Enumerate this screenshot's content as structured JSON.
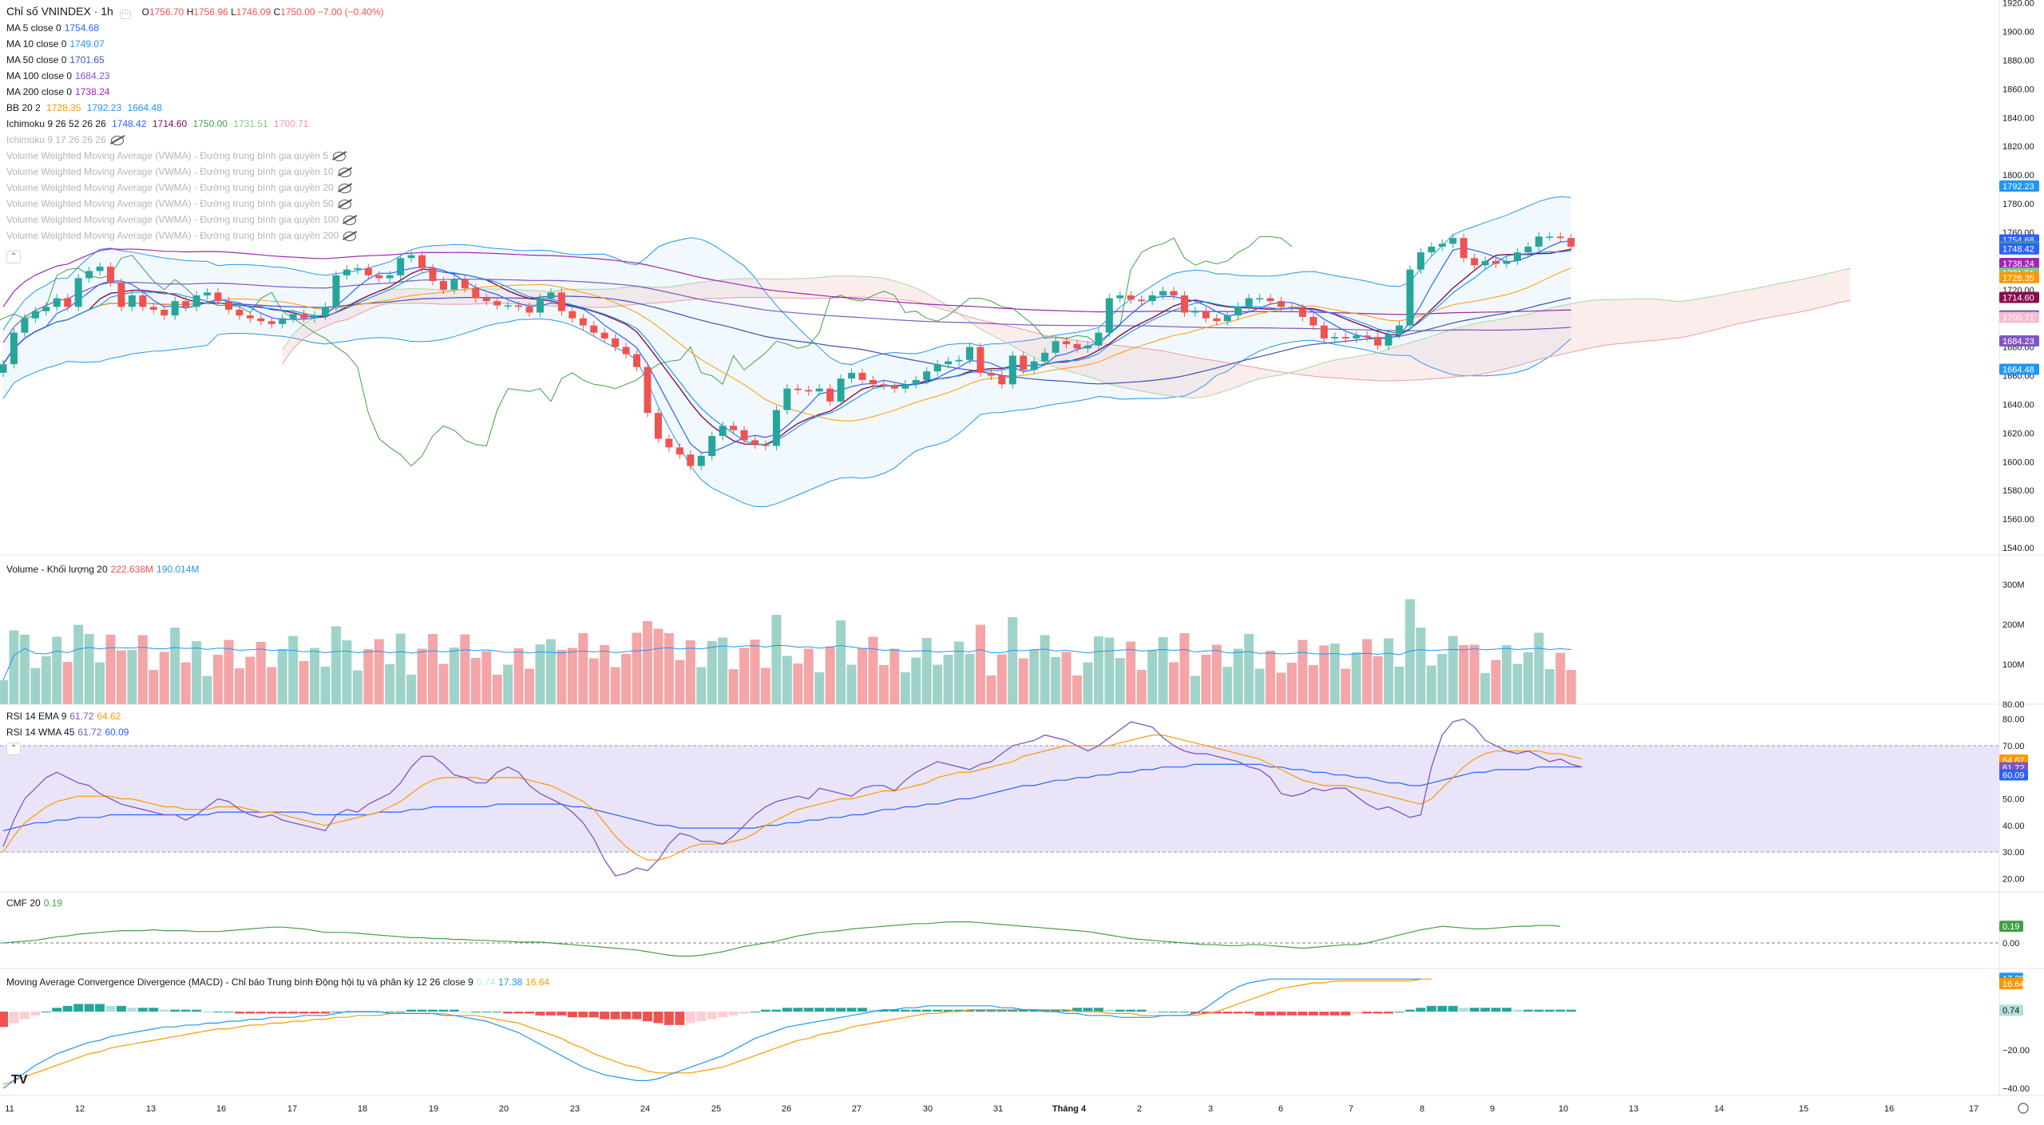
{
  "legend": {
    "title": "Chỉ số VNINDEX · 1h",
    "ohlc": {
      "o_label": "O",
      "o": "1756.70",
      "h_label": "H",
      "h": "1756.96",
      "l_label": "L",
      "l": "1746.09",
      "c_label": "C",
      "c": "1750.00",
      "chg": "−7.00 (−0.40%)"
    },
    "ma": [
      {
        "label": "MA 5 close 0",
        "value": "1754.68",
        "color": "#2962ff"
      },
      {
        "label": "MA 10 close 0",
        "value": "1749.07",
        "color": "#2196f3"
      },
      {
        "label": "MA 50 close 0",
        "value": "1701.65",
        "color": "#3f51b5"
      },
      {
        "label": "MA 100 close 0",
        "value": "1684.23",
        "color": "#7e57c2"
      },
      {
        "label": "MA 200 close 0",
        "value": "1738.24",
        "color": "#9c27b0"
      }
    ],
    "bb": {
      "label": "BB 20 2",
      "v1": "1728.35",
      "v2": "1792.23",
      "v3": "1664.48"
    },
    "ichimoku": {
      "label": "Ichimoku 9 26 52 26 26",
      "v1": "1748.42",
      "v2": "1714.60",
      "v3": "1750.00",
      "v4": "1731.51",
      "v5": "1700.71"
    },
    "ichimoku2": "Ichimoku 9 17 26 26 26",
    "vwma": [
      "Volume Weighted Moving Average (VWMA) - Đường trung bình gia quyền 5",
      "Volume Weighted Moving Average (VWMA) - Đường trung bình gia quyền 10",
      "Volume Weighted Moving Average (VWMA) - Đường trung bình gia quyền 20",
      "Volume Weighted Moving Average (VWMA) - Đường trung bình gia quyền 50",
      "Volume Weighted Moving Average (VWMA) - Đường trung bình gia quyền 100",
      "Volume Weighted Moving Average (VWMA) - Đường trung bình gia quyền 200"
    ],
    "volume": {
      "label": "Volume - Khối lượng 20",
      "v1": "222.638M",
      "v2": "190.014M"
    },
    "rsi1": {
      "label": "RSI 14 EMA 9",
      "v1": "61.72",
      "v2": "64.62"
    },
    "rsi2": {
      "label": "RSI 14 WMA 45",
      "v1": "61.72",
      "v2": "60.09"
    },
    "cmf": {
      "label": "CMF 20",
      "v1": "0.19"
    },
    "macd": {
      "label": "Moving Average Convergence Divergence (MACD) - Chỉ báo Trung bình Động hội tụ và phân kỳ 12 26 close 9",
      "v1": "0.74",
      "v2": "17.38",
      "v3": "16.64"
    }
  },
  "logo_text": "TV",
  "colors": {
    "up": "#26a69a",
    "down": "#ef5350",
    "up_vol": "#9fd3c9",
    "down_vol": "#f3a5a8",
    "rsi_bg": "#e9e4f7"
  },
  "chart_data": {
    "type": "candlestick",
    "x_labels": [
      "11",
      "12",
      "13",
      "16",
      "17",
      "18",
      "19",
      "20",
      "23",
      "24",
      "25",
      "26",
      "27",
      "30",
      "31",
      "Tháng 4",
      "2",
      "3",
      "6",
      "7",
      "8",
      "9",
      "10",
      "13",
      "14",
      "15",
      "16",
      "17"
    ],
    "price_axis": {
      "ticks": [
        1540,
        1560,
        1580,
        1600,
        1620,
        1640,
        1660,
        1680,
        1700,
        1720,
        1740,
        1760,
        1780,
        1800,
        1820,
        1840,
        1860,
        1880,
        1900,
        1920
      ],
      "ylim": [
        1535,
        1922
      ]
    },
    "price_tags": [
      {
        "value": "1792.23",
        "color": "#2196f3"
      },
      {
        "value": "1754.68",
        "color": "#2962ff"
      },
      {
        "value": "1750.00",
        "color": "#ef5350"
      },
      {
        "value": "1750.00",
        "color": "#43a047"
      },
      {
        "value": "1749.07",
        "color": "#2196f3"
      },
      {
        "value": "1748.42",
        "color": "#2962ff"
      },
      {
        "value": "1738.24",
        "color": "#9c27b0"
      },
      {
        "value": "1731.51",
        "color": "#81c784"
      },
      {
        "value": "1728.35",
        "color": "#ff9800"
      },
      {
        "value": "1714.60",
        "color": "#880e4f"
      },
      {
        "value": "1701.65",
        "color": "#3f51b5"
      },
      {
        "value": "1700.71",
        "color": "#f8bbd0"
      },
      {
        "value": "1684.23",
        "color": "#7e57c2"
      },
      {
        "value": "1664.48",
        "color": "#2196f3"
      }
    ],
    "close": [
      1668,
      1690,
      1700,
      1705,
      1708,
      1714,
      1708,
      1728,
      1733,
      1736,
      1725,
      1708,
      1716,
      1708,
      1706,
      1702,
      1712,
      1708,
      1716,
      1718,
      1712,
      1706,
      1702,
      1700,
      1698,
      1696,
      1700,
      1703,
      1700,
      1702,
      1708,
      1730,
      1734,
      1735,
      1730,
      1728,
      1730,
      1742,
      1744,
      1735,
      1726,
      1720,
      1727,
      1721,
      1714,
      1712,
      1709,
      1709,
      1708,
      1704,
      1714,
      1718,
      1705,
      1700,
      1695,
      1690,
      1686,
      1680,
      1675,
      1666,
      1634,
      1616,
      1610,
      1605,
      1597,
      1604,
      1618,
      1625,
      1622,
      1615,
      1612,
      1611,
      1636,
      1651,
      1650,
      1649,
      1651,
      1642,
      1658,
      1662,
      1657,
      1654,
      1653,
      1651,
      1654,
      1657,
      1663,
      1668,
      1670,
      1671,
      1680,
      1662,
      1660,
      1654,
      1674,
      1664,
      1670,
      1676,
      1684,
      1682,
      1679,
      1681,
      1690,
      1714,
      1716,
      1713,
      1712,
      1716,
      1719,
      1716,
      1704,
      1705,
      1700,
      1698,
      1702,
      1708,
      1714,
      1714,
      1712,
      1708,
      1707,
      1701,
      1695,
      1686,
      1687,
      1686,
      1688,
      1687,
      1681,
      1689,
      1695,
      1734,
      1746,
      1750,
      1752,
      1756,
      1742,
      1737,
      1740,
      1738,
      1740,
      1746,
      1750,
      1757,
      1757,
      1756,
      1750
    ],
    "volume_axis": {
      "ticks": [
        "100M",
        "200M",
        "300M"
      ],
      "max_label": "80.00"
    },
    "rsi": {
      "ticks": [
        20,
        30,
        40,
        50,
        60,
        70,
        80
      ],
      "band": [
        30,
        70
      ],
      "rsi": [
        32,
        42,
        50,
        54,
        58,
        60,
        58,
        56,
        55,
        52,
        50,
        48,
        47,
        46,
        45,
        44,
        44,
        42,
        44,
        47,
        50,
        49,
        46,
        44,
        43,
        44,
        42,
        41,
        40,
        39,
        38,
        44,
        46,
        45,
        48,
        50,
        52,
        56,
        62,
        66,
        66,
        63,
        59,
        58,
        56,
        56,
        60,
        62,
        60,
        55,
        52,
        50,
        48,
        45,
        41,
        35,
        27,
        21,
        22,
        24,
        23,
        27,
        33,
        37,
        36,
        34,
        34,
        33,
        36,
        40,
        44,
        47,
        49,
        50,
        51,
        50,
        54,
        53,
        52,
        51,
        54,
        55,
        55,
        53,
        57,
        60,
        62,
        64,
        63,
        62,
        61,
        63,
        64,
        67,
        70,
        71,
        72,
        74,
        73,
        72,
        70,
        68,
        70,
        73,
        76,
        79,
        78,
        77,
        73,
        70,
        68,
        67,
        67,
        66,
        65,
        64,
        62,
        61,
        58,
        52,
        51,
        52,
        54,
        53,
        54,
        54,
        51,
        48,
        46,
        47,
        45,
        43,
        44,
        62,
        74,
        79,
        80,
        77,
        72,
        70,
        68,
        67,
        68,
        66,
        64,
        65,
        63,
        62
      ],
      "ema": [
        30,
        36,
        41,
        44,
        47,
        49,
        50,
        51,
        51,
        51,
        51,
        50,
        50,
        49,
        48,
        47,
        47,
        46,
        46,
        46,
        47,
        47,
        47,
        46,
        45,
        45,
        44,
        43,
        42,
        41,
        40,
        41,
        42,
        43,
        44,
        45,
        47,
        49,
        52,
        55,
        57,
        58,
        58,
        58,
        58,
        57,
        58,
        58,
        58,
        57,
        56,
        55,
        53,
        51,
        49,
        46,
        41,
        36,
        32,
        29,
        27,
        27,
        28,
        30,
        32,
        33,
        33,
        33,
        34,
        35,
        37,
        40,
        42,
        44,
        46,
        47,
        48,
        49,
        50,
        50,
        51,
        52,
        53,
        53,
        54,
        55,
        56,
        58,
        59,
        60,
        60,
        61,
        62,
        63,
        64,
        66,
        67,
        68,
        69,
        70,
        70,
        70,
        70,
        70,
        71,
        72,
        73,
        74,
        74,
        73,
        72,
        71,
        70,
        69,
        68,
        67,
        66,
        65,
        63,
        61,
        59,
        57,
        56,
        55,
        55,
        55,
        54,
        53,
        52,
        51,
        50,
        49,
        48,
        50,
        54,
        58,
        62,
        65,
        67,
        68,
        68,
        68,
        68,
        68,
        67,
        67,
        66,
        65
      ],
      "wma": [
        38,
        39,
        40,
        41,
        41,
        42,
        42,
        43,
        43,
        43,
        44,
        44,
        44,
        44,
        44,
        44,
        44,
        44,
        44,
        44,
        45,
        45,
        45,
        45,
        45,
        45,
        45,
        45,
        45,
        44,
        44,
        44,
        44,
        44,
        44,
        45,
        45,
        45,
        46,
        46,
        47,
        47,
        47,
        47,
        47,
        47,
        48,
        48,
        48,
        48,
        48,
        48,
        48,
        47,
        47,
        46,
        45,
        44,
        43,
        42,
        41,
        40,
        40,
        39,
        39,
        39,
        39,
        39,
        39,
        39,
        39,
        40,
        40,
        41,
        41,
        42,
        42,
        43,
        43,
        44,
        44,
        45,
        46,
        46,
        47,
        47,
        48,
        48,
        49,
        50,
        50,
        51,
        52,
        53,
        54,
        55,
        55,
        56,
        57,
        57,
        58,
        58,
        59,
        59,
        60,
        60,
        61,
        61,
        62,
        62,
        62,
        63,
        63,
        63,
        63,
        63,
        63,
        63,
        62,
        62,
        61,
        61,
        60,
        60,
        59,
        59,
        58,
        58,
        57,
        56,
        56,
        55,
        55,
        56,
        57,
        58,
        59,
        60,
        60,
        61,
        61,
        61,
        61,
        62,
        62,
        62,
        62,
        62
      ]
    },
    "cmf": {
      "ticks": [
        "0.00"
      ],
      "values": [
        0.0,
        0.01,
        0.02,
        0.03,
        0.05,
        0.07,
        0.08,
        0.1,
        0.11,
        0.12,
        0.13,
        0.14,
        0.14,
        0.14,
        0.15,
        0.14,
        0.14,
        0.14,
        0.13,
        0.13,
        0.13,
        0.14,
        0.15,
        0.16,
        0.17,
        0.18,
        0.18,
        0.17,
        0.16,
        0.14,
        0.12,
        0.12,
        0.12,
        0.11,
        0.1,
        0.09,
        0.08,
        0.07,
        0.06,
        0.06,
        0.05,
        0.05,
        0.04,
        0.04,
        0.03,
        0.03,
        0.02,
        0.02,
        0.01,
        0.01,
        0.01,
        0.0,
        -0.01,
        -0.02,
        -0.03,
        -0.04,
        -0.05,
        -0.06,
        -0.07,
        -0.08,
        -0.1,
        -0.12,
        -0.14,
        -0.15,
        -0.15,
        -0.14,
        -0.12,
        -0.1,
        -0.07,
        -0.04,
        -0.02,
        0.0,
        0.02,
        0.05,
        0.08,
        0.1,
        0.12,
        0.13,
        0.14,
        0.16,
        0.17,
        0.18,
        0.19,
        0.2,
        0.21,
        0.22,
        0.22,
        0.23,
        0.24,
        0.24,
        0.24,
        0.23,
        0.22,
        0.21,
        0.2,
        0.19,
        0.18,
        0.17,
        0.16,
        0.15,
        0.14,
        0.13,
        0.11,
        0.09,
        0.07,
        0.05,
        0.04,
        0.03,
        0.02,
        0.01,
        0.0,
        -0.01,
        -0.02,
        -0.02,
        -0.03,
        -0.03,
        -0.02,
        -0.02,
        -0.03,
        -0.04,
        -0.05,
        -0.06,
        -0.05,
        -0.04,
        -0.03,
        -0.02,
        -0.02,
        0.0,
        0.03,
        0.06,
        0.09,
        0.12,
        0.15,
        0.17,
        0.19,
        0.18,
        0.17,
        0.16,
        0.16,
        0.17,
        0.18,
        0.19,
        0.19,
        0.2,
        0.2,
        0.19
      ]
    },
    "macd": {
      "ticks": [
        "0.00",
        "−20.00",
        "−40.00"
      ],
      "tags": [
        "17.38",
        "16.64",
        "0.74"
      ],
      "hist": [
        -8,
        -6,
        -4,
        -2,
        0,
        2,
        3,
        4,
        4,
        4,
        3,
        3,
        2,
        2,
        2,
        1,
        1,
        1,
        1,
        0,
        0,
        0,
        -1,
        -1,
        -1,
        -1,
        -1,
        -1,
        -1,
        -1,
        -1,
        0,
        0,
        0,
        0,
        0,
        0,
        0,
        1,
        1,
        1,
        1,
        1,
        0,
        0,
        0,
        0,
        -1,
        -1,
        -1,
        -2,
        -2,
        -2,
        -3,
        -3,
        -3,
        -4,
        -4,
        -4,
        -4,
        -5,
        -6,
        -7,
        -7,
        -6,
        -5,
        -4,
        -3,
        -2,
        -1,
        0,
        1,
        1,
        2,
        2,
        2,
        2,
        2,
        2,
        2,
        2,
        1,
        1,
        1,
        1,
        1,
        1,
        1,
        1,
        1,
        1,
        1,
        1,
        1,
        1,
        1,
        1,
        1,
        1,
        1,
        2,
        2,
        2,
        1,
        1,
        1,
        1,
        0,
        0,
        0,
        0,
        -1,
        -1,
        -1,
        -1,
        -1,
        -1,
        -2,
        -2,
        -2,
        -2,
        -2,
        -2,
        -2,
        -2,
        -2,
        -1,
        -1,
        -1,
        -1,
        0,
        1,
        2,
        3,
        3,
        3,
        2,
        2,
        2,
        2,
        2,
        1,
        1,
        1,
        1,
        1,
        1
      ],
      "macd": [
        -40,
        -36,
        -32,
        -28,
        -25,
        -22,
        -20,
        -18,
        -16,
        -15,
        -13,
        -12,
        -11,
        -10,
        -9,
        -8,
        -8,
        -7,
        -7,
        -6,
        -6,
        -5,
        -5,
        -4,
        -4,
        -3,
        -3,
        -3,
        -2,
        -2,
        -2,
        -1,
        0,
        0,
        0,
        0,
        -1,
        -1,
        -1,
        -1,
        -1,
        -2,
        -2,
        -3,
        -4,
        -5,
        -7,
        -9,
        -11,
        -14,
        -17,
        -20,
        -23,
        -26,
        -29,
        -31,
        -33,
        -34,
        -35,
        -36,
        -36,
        -35,
        -33,
        -31,
        -29,
        -27,
        -25,
        -23,
        -20,
        -17,
        -14,
        -12,
        -10,
        -8,
        -7,
        -6,
        -5,
        -4,
        -3,
        -2,
        -1,
        0,
        1,
        1,
        2,
        2,
        3,
        3,
        3,
        3,
        3,
        3,
        3,
        2,
        2,
        1,
        1,
        0,
        0,
        -1,
        -1,
        -2,
        -2,
        -2,
        -3,
        -3,
        -3,
        -3,
        -2,
        -2,
        -2,
        -1,
        2,
        6,
        10,
        13,
        15,
        16,
        17,
        17,
        17,
        17,
        17,
        17,
        17,
        17,
        17,
        17,
        17,
        17,
        17,
        17,
        17
      ],
      "signal": [
        -38,
        -36,
        -34,
        -32,
        -30,
        -28,
        -26,
        -24,
        -22,
        -21,
        -19,
        -18,
        -17,
        -16,
        -15,
        -14,
        -13,
        -12,
        -11,
        -10,
        -9,
        -9,
        -8,
        -7,
        -7,
        -6,
        -6,
        -5,
        -5,
        -4,
        -4,
        -3,
        -3,
        -2,
        -2,
        -2,
        -1,
        -1,
        -1,
        -1,
        -1,
        -1,
        -2,
        -2,
        -2,
        -3,
        -4,
        -5,
        -6,
        -8,
        -10,
        -12,
        -14,
        -17,
        -19,
        -22,
        -24,
        -26,
        -28,
        -29,
        -31,
        -32,
        -32,
        -32,
        -32,
        -31,
        -30,
        -29,
        -27,
        -25,
        -23,
        -21,
        -19,
        -17,
        -15,
        -14,
        -12,
        -11,
        -10,
        -8,
        -7,
        -6,
        -5,
        -4,
        -3,
        -2,
        -1,
        -1,
        0,
        0,
        1,
        1,
        1,
        1,
        1,
        1,
        1,
        1,
        1,
        1,
        0,
        0,
        0,
        -1,
        -1,
        -1,
        -2,
        -2,
        -2,
        -2,
        -2,
        -2,
        -1,
        0,
        2,
        4,
        6,
        8,
        10,
        12,
        13,
        14,
        15,
        15,
        16,
        16,
        16,
        16,
        16,
        16,
        16,
        16,
        17,
        17
      ]
    }
  }
}
